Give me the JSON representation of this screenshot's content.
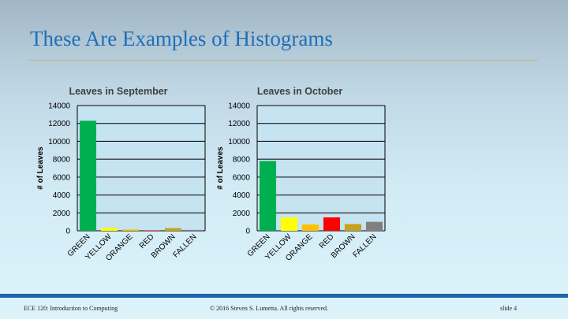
{
  "slide": {
    "title": "These Are Examples of Histograms",
    "footer_left": "ECE 120: Introduction to Computing",
    "footer_center": "© 2016 Steven S. Lumetta.  All rights reserved.",
    "footer_right": "slide 4"
  },
  "chart_data": [
    {
      "type": "bar",
      "title": "Leaves in September",
      "ylabel": "# of Leaves",
      "xlabel": "",
      "categories": [
        "GREEN",
        "YELLOW",
        "ORANGE",
        "RED",
        "BROWN",
        "FALLEN"
      ],
      "values": [
        12300,
        350,
        150,
        50,
        300,
        100
      ],
      "colors": [
        "#00b050",
        "#ffff00",
        "#ffc000",
        "#ff0000",
        "#c8a21a",
        "#808080"
      ],
      "ylim": [
        0,
        14000
      ],
      "yticks": [
        0,
        2000,
        4000,
        6000,
        8000,
        10000,
        12000,
        14000
      ],
      "grid": true
    },
    {
      "type": "bar",
      "title": "Leaves in October",
      "ylabel": "# of Leaves",
      "xlabel": "",
      "categories": [
        "GREEN",
        "YELLOW",
        "ORANGE",
        "RED",
        "BROWN",
        "FALLEN"
      ],
      "values": [
        7800,
        1500,
        700,
        1500,
        750,
        1000
      ],
      "colors": [
        "#00b050",
        "#ffff00",
        "#ffc000",
        "#ff0000",
        "#c8a21a",
        "#808080"
      ],
      "ylim": [
        0,
        14000
      ],
      "yticks": [
        0,
        2000,
        4000,
        6000,
        8000,
        10000,
        12000,
        14000
      ],
      "grid": true
    }
  ]
}
